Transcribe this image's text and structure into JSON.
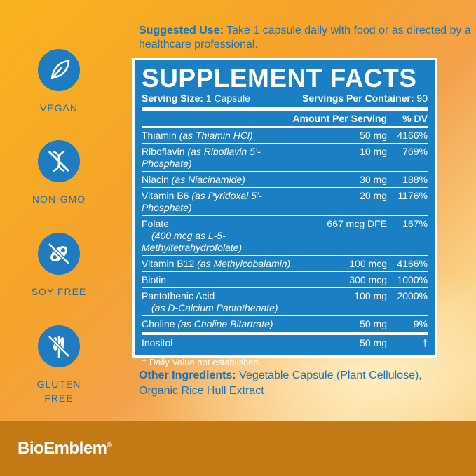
{
  "suggested_use": {
    "label": "Suggested Use:",
    "text": " Take 1 capsule daily with food or as directed by a healthcare professional."
  },
  "badges": [
    {
      "label": "VEGAN",
      "icon": "leaf-icon"
    },
    {
      "label": "NON-GMO",
      "icon": "dna-crossed-icon"
    },
    {
      "label": "SOY FREE",
      "icon": "soybean-crossed-icon"
    },
    {
      "label": "GLUTEN FREE",
      "icon": "wheat-crossed-icon"
    }
  ],
  "facts": {
    "title": "SUPPLEMENT FACTS",
    "serving_size_label": "Serving Size:",
    "serving_size": " 1 Capsule",
    "servings_label": "Servings Per Container:",
    "servings": " 90",
    "col_amount": "Amount Per Serving",
    "col_dv": "% DV",
    "rows": [
      {
        "name": "Thiamin ",
        "source": "(as Thiamin HCl)",
        "amount": "50 mg",
        "dv": "4166%"
      },
      {
        "name": "Riboflavin ",
        "source": "(as Riboflavin 5’-Phosphate)",
        "amount": "10 mg",
        "dv": "769%"
      },
      {
        "name": "Niacin ",
        "source": "(as Niacinamide)",
        "amount": "30 mg",
        "dv": "188%"
      },
      {
        "name": "Vitamin B6 ",
        "source": "(as Pyridoxal 5’-Phosphate)",
        "amount": "20 mg",
        "dv": "1176%"
      },
      {
        "name": "Folate",
        "source": "(400 mcg as L-5-Methyltetrahydrofolate)",
        "amount": "667 mcg DFE",
        "dv": "167%"
      },
      {
        "name": "Vitamin B12 ",
        "source": "(as Methylcobalamin)",
        "amount": "100 mcg",
        "dv": "4166%"
      },
      {
        "name": "Biotin",
        "source": "",
        "amount": "300 mcg",
        "dv": "1000%"
      },
      {
        "name": "Pantothenic Acid",
        "source": "(as D-Calcium Pantothenate)",
        "amount": "100 mg",
        "dv": "2000%"
      },
      {
        "name": "Choline ",
        "source": "(as Choline Bitartrate)",
        "amount": "50 mg",
        "dv": "9%"
      },
      {
        "name": "Inositol",
        "source": "",
        "amount": "50 mg",
        "dv": "†"
      }
    ],
    "footnote": "† Daily Value not established."
  },
  "other_ingredients": {
    "label": "Other Ingredients:",
    "text": " Vegetable Capsule (Plant Cellulose), Organic Rice Hull Extract"
  },
  "brand": {
    "name": "BioEmblem",
    "mark": "®"
  },
  "colors": {
    "blue": "#1a80c3",
    "band": "#c47a14"
  }
}
